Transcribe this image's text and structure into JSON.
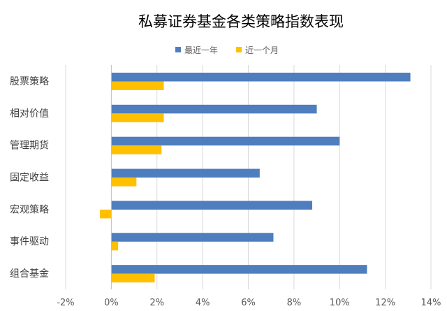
{
  "chart_data": {
    "type": "bar",
    "orientation": "horizontal",
    "title": "私募证券基金各类策略指数表现",
    "categories": [
      "股票策略",
      "相对价值",
      "管理期货",
      "固定收益",
      "宏观策略",
      "事件驱动",
      "组合基金"
    ],
    "series": [
      {
        "name": "最近一年",
        "color": "#4E7EBD",
        "values": [
          13.1,
          9.0,
          10.0,
          6.5,
          8.8,
          7.1,
          11.2
        ]
      },
      {
        "name": "近一个月",
        "color": "#FFC000",
        "values": [
          2.3,
          2.3,
          2.2,
          1.1,
          -0.5,
          0.3,
          1.9
        ]
      }
    ],
    "xlim": [
      -2,
      14
    ],
    "x_ticks": [
      -2,
      0,
      2,
      4,
      6,
      8,
      10,
      12,
      14
    ],
    "x_tick_labels": [
      "-2%",
      "0%",
      "2%",
      "4%",
      "6%",
      "8%",
      "10%",
      "12%",
      "14%"
    ],
    "grid": true,
    "legend_position": "top-center",
    "xlabel": "",
    "ylabel": ""
  }
}
